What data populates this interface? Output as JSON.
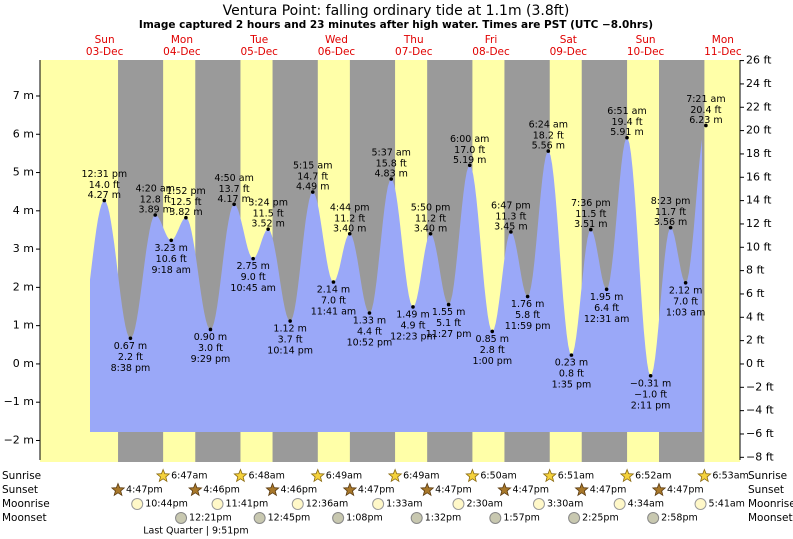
{
  "chart_data": {
    "type": "tide",
    "title": "Ventura Point: falling  ordinary tide at 1.1m (3.8ft)",
    "subtitle": "Image captured 2 hours and 23 minutes after high water. Times are PST (UTC −8.0hrs)",
    "ylim": [
      -2.51,
      7.94
    ],
    "yticks": [
      {
        "value": 7,
        "label": "7 m"
      },
      {
        "value": 6,
        "label": "6 m"
      },
      {
        "value": 5,
        "label": "5 m"
      },
      {
        "value": 4,
        "label": "4 m"
      },
      {
        "value": 3,
        "label": "3 m"
      },
      {
        "value": 2,
        "label": "2 m"
      },
      {
        "value": 1,
        "label": "1 m"
      },
      {
        "value": 0,
        "label": "0 m"
      },
      {
        "value": -1,
        "label": "−1 m"
      },
      {
        "value": -2,
        "label": "−2 m"
      }
    ],
    "y2lim": [
      -8.23,
      26.05
    ],
    "y2ticks": [
      {
        "value": 26,
        "label": "26 ft"
      },
      {
        "value": 24,
        "label": "24 ft"
      },
      {
        "value": 22,
        "label": "22 ft"
      },
      {
        "value": 20,
        "label": "20 ft"
      },
      {
        "value": 18,
        "label": "18 ft"
      },
      {
        "value": 16,
        "label": "16 ft"
      },
      {
        "value": 14,
        "label": "14 ft"
      },
      {
        "value": 12,
        "label": "12 ft"
      },
      {
        "value": 10,
        "label": "10 ft"
      },
      {
        "value": 8,
        "label": "8 ft"
      },
      {
        "value": 6,
        "label": "6 ft"
      },
      {
        "value": 4,
        "label": "4 ft"
      },
      {
        "value": 2,
        "label": "2 ft"
      },
      {
        "value": 0,
        "label": "0 ft"
      },
      {
        "value": -2,
        "label": "−2 ft"
      },
      {
        "value": -4,
        "label": "−4 ft"
      },
      {
        "value": -6,
        "label": "−6 ft"
      },
      {
        "value": -8,
        "label": "−8 ft"
      }
    ],
    "rows": {
      "sunrise": "Sunrise",
      "sunset": "Sunset",
      "moonrise": "Moonrise",
      "moonset": "Moonset"
    },
    "days": [
      {
        "name": "Sun",
        "date": "03-Dec",
        "sunset": "4:47pm",
        "moonrise": "10:44pm",
        "tides": [
          {
            "time": "12:31 pm",
            "ft": "14.0 ft",
            "m": 4.27,
            "m_label": "4.27 m"
          },
          {
            "time": "8:38 pm",
            "ft": "2.2 ft",
            "m": 0.67,
            "m_label": "0.67 m"
          }
        ]
      },
      {
        "name": "Mon",
        "date": "04-Dec",
        "sunrise": "6:47am",
        "sunset": "4:46pm",
        "moonrise": "11:41pm",
        "moonset": "12:21pm",
        "moon_phase": "Last Quarter | 9:51pm",
        "tides": [
          {
            "time": "4:20 am",
            "ft": "12.8 ft",
            "m": 3.89,
            "m_label": "3.89 m"
          },
          {
            "time": "9:18 am",
            "ft": "10.6 ft",
            "m": 3.23,
            "m_label": "3.23 m"
          },
          {
            "time": "1:52 pm",
            "ft": "12.5 ft",
            "m": 3.82,
            "m_label": "3.82 m"
          },
          {
            "time": "9:29 pm",
            "ft": "3.0 ft",
            "m": 0.9,
            "m_label": "0.90 m"
          }
        ]
      },
      {
        "name": "Tue",
        "date": "05-Dec",
        "sunrise": "6:48am",
        "sunset": "4:46pm",
        "moonset": "12:45pm",
        "tides": [
          {
            "time": "4:50 am",
            "ft": "13.7 ft",
            "m": 4.17,
            "m_label": "4.17 m"
          },
          {
            "time": "10:45 am",
            "ft": "9.0 ft",
            "m": 2.75,
            "m_label": "2.75 m"
          },
          {
            "time": "3:24 pm",
            "ft": "11.5 ft",
            "m": 3.52,
            "m_label": "3.52 m"
          },
          {
            "time": "10:14 pm",
            "ft": "3.7 ft",
            "m": 1.12,
            "m_label": "1.12 m"
          }
        ]
      },
      {
        "name": "Wed",
        "date": "06-Dec",
        "sunrise": "6:49am",
        "sunset": "4:47pm",
        "moonrise": "12:36am",
        "moonset": "1:08pm",
        "tides": [
          {
            "time": "5:15 am",
            "ft": "14.7 ft",
            "m": 4.49,
            "m_label": "4.49 m"
          },
          {
            "time": "11:41 am",
            "ft": "7.0 ft",
            "m": 2.14,
            "m_label": "2.14 m"
          },
          {
            "time": "4:44 pm",
            "ft": "11.2 ft",
            "m": 3.4,
            "m_label": "3.40 m"
          },
          {
            "time": "10:52 pm",
            "ft": "4.4 ft",
            "m": 1.33,
            "m_label": "1.33 m"
          }
        ]
      },
      {
        "name": "Thu",
        "date": "07-Dec",
        "sunrise": "6:49am",
        "sunset": "4:47pm",
        "moonrise": "1:33am",
        "moonset": "1:32pm",
        "tides": [
          {
            "time": "5:37 am",
            "ft": "15.8 ft",
            "m": 4.83,
            "m_label": "4.83 m"
          },
          {
            "time": "12:23 pm",
            "ft": "4.9 ft",
            "m": 1.49,
            "m_label": "1.49 m"
          },
          {
            "time": "5:50 pm",
            "ft": "11.2 ft",
            "m": 3.4,
            "m_label": "3.40 m"
          },
          {
            "time": "11:27 pm",
            "ft": "5.1 ft",
            "m": 1.55,
            "m_label": "1.55 m"
          }
        ]
      },
      {
        "name": "Fri",
        "date": "08-Dec",
        "sunrise": "6:50am",
        "sunset": "4:47pm",
        "moonrise": "2:30am",
        "moonset": "1:57pm",
        "tides": [
          {
            "time": "6:00 am",
            "ft": "17.0 ft",
            "m": 5.19,
            "m_label": "5.19 m"
          },
          {
            "time": "1:00 pm",
            "ft": "2.8 ft",
            "m": 0.85,
            "m_label": "0.85 m"
          },
          {
            "time": "6:47 pm",
            "ft": "11.3 ft",
            "m": 3.45,
            "m_label": "3.45 m"
          },
          {
            "time": "11:59 pm",
            "ft": "5.8 ft",
            "m": 1.76,
            "m_label": "1.76 m"
          }
        ]
      },
      {
        "name": "Sat",
        "date": "09-Dec",
        "sunrise": "6:51am",
        "sunset": "4:47pm",
        "moonrise": "3:30am",
        "moonset": "2:25pm",
        "tides": [
          {
            "time": "6:24 am",
            "ft": "18.2 ft",
            "m": 5.56,
            "m_label": "5.56 m"
          },
          {
            "time": "1:35 pm",
            "ft": "0.8 ft",
            "m": 0.23,
            "m_label": "0.23 m"
          },
          {
            "time": "7:36 pm",
            "ft": "11.5 ft",
            "m": 3.51,
            "m_label": "3.51 m"
          }
        ]
      },
      {
        "name": "Sun",
        "date": "10-Dec",
        "sunrise": "6:52am",
        "sunset": "4:47pm",
        "moonrise": "4:34am",
        "moonset": "2:58pm",
        "tides": [
          {
            "time": "12:31 am",
            "ft": "6.4 ft",
            "m": 1.95,
            "m_label": "1.95 m"
          },
          {
            "time": "6:51 am",
            "ft": "19.4 ft",
            "m": 5.91,
            "m_label": "5.91 m"
          },
          {
            "time": "2:11 pm",
            "ft": "−1.0 ft",
            "m": -0.31,
            "m_label": "−0.31 m"
          },
          {
            "time": "8:23 pm",
            "ft": "11.7 ft",
            "m": 3.56,
            "m_label": "3.56 m"
          }
        ]
      },
      {
        "name": "Mon",
        "date": "11-Dec",
        "sunrise": "6:53am",
        "moonrise": "5:41am",
        "tides": [
          {
            "time": "1:03 am",
            "ft": "7.0 ft",
            "m": 2.12,
            "m_label": "2.12 m"
          },
          {
            "time": "7:21 am",
            "ft": "20.4 ft",
            "m": 6.23,
            "m_label": "6.23 m"
          }
        ]
      }
    ]
  }
}
